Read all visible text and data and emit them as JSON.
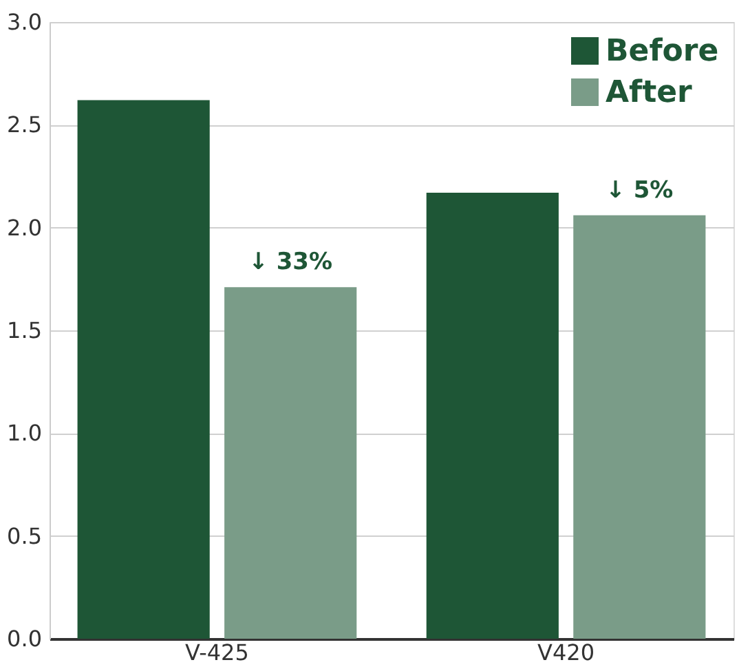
{
  "chart_data": {
    "type": "bar",
    "categories": [
      "V-425",
      "V420"
    ],
    "series": [
      {
        "name": "Before",
        "color": "#1e5636",
        "values": [
          2.62,
          2.17
        ]
      },
      {
        "name": "After",
        "color": "#7a9c88",
        "values": [
          1.71,
          2.06
        ]
      }
    ],
    "ylim": [
      0,
      3
    ],
    "yticks": [
      {
        "value": 0,
        "label": "0.0"
      },
      {
        "value": 0.5,
        "label": "0.5"
      },
      {
        "value": 1,
        "label": "1.0"
      },
      {
        "value": 1.5,
        "label": "1.5"
      },
      {
        "value": 2,
        "label": "2.0"
      },
      {
        "value": 2.5,
        "label": "2.5"
      },
      {
        "value": 3,
        "label": "3.0"
      }
    ],
    "grid": "y",
    "legend": "top right",
    "annotations": [
      "↓ 33%",
      "↓ 5%"
    ]
  }
}
